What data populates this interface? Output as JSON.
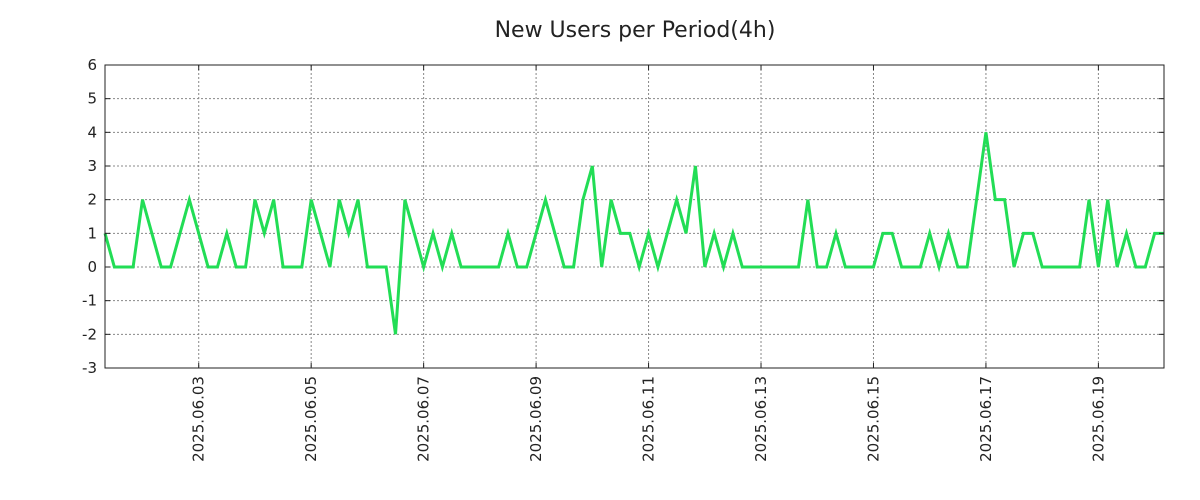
{
  "chart_data": {
    "type": "line",
    "title": "New Users per Period(4h)",
    "xlabel": "",
    "ylabel": "",
    "ylim": [
      -3,
      6
    ],
    "yticks": [
      6,
      5,
      4,
      3,
      2,
      1,
      0,
      -1,
      -2,
      -3
    ],
    "ytick_labels": [
      "6",
      "5",
      "4",
      "3",
      "2",
      "1",
      "0",
      "-1",
      "-2",
      "-3"
    ],
    "xticks": [
      {
        "label": "2025.06.03",
        "period_index": 10
      },
      {
        "label": "2025.06.05",
        "period_index": 22
      },
      {
        "label": "2025.06.07",
        "period_index": 34
      },
      {
        "label": "2025.06.09",
        "period_index": 46
      },
      {
        "label": "2025.06.11",
        "period_index": 58
      },
      {
        "label": "2025.06.13",
        "period_index": 70
      },
      {
        "label": "2025.06.15",
        "period_index": 82
      },
      {
        "label": "2025.06.17",
        "period_index": 94
      },
      {
        "label": "2025.06.19",
        "period_index": 106
      }
    ],
    "grid": true,
    "series": [
      {
        "name": "New Users",
        "color": "#22dd55",
        "values": [
          1,
          0,
          0,
          0,
          2,
          1,
          0,
          0,
          1,
          2,
          1,
          0,
          0,
          1,
          0,
          0,
          2,
          1,
          2,
          0,
          0,
          0,
          2,
          1,
          0,
          2,
          1,
          2,
          0,
          0,
          0,
          -2,
          2,
          1,
          0,
          1,
          0,
          1,
          0,
          0,
          0,
          0,
          0,
          1,
          0,
          0,
          1,
          2,
          1,
          0,
          0,
          2,
          3,
          0,
          2,
          1,
          1,
          0,
          1,
          0,
          1,
          2,
          1,
          3,
          0,
          1,
          0,
          1,
          0,
          0,
          0,
          0,
          0,
          0,
          0,
          2,
          0,
          0,
          1,
          0,
          0,
          0,
          0,
          1,
          1,
          0,
          0,
          0,
          1,
          0,
          1,
          0,
          0,
          2,
          4,
          2,
          2,
          0,
          1,
          1,
          0,
          0,
          0,
          0,
          0,
          2,
          0,
          2,
          0,
          1,
          0,
          0,
          1,
          1
        ]
      }
    ]
  }
}
